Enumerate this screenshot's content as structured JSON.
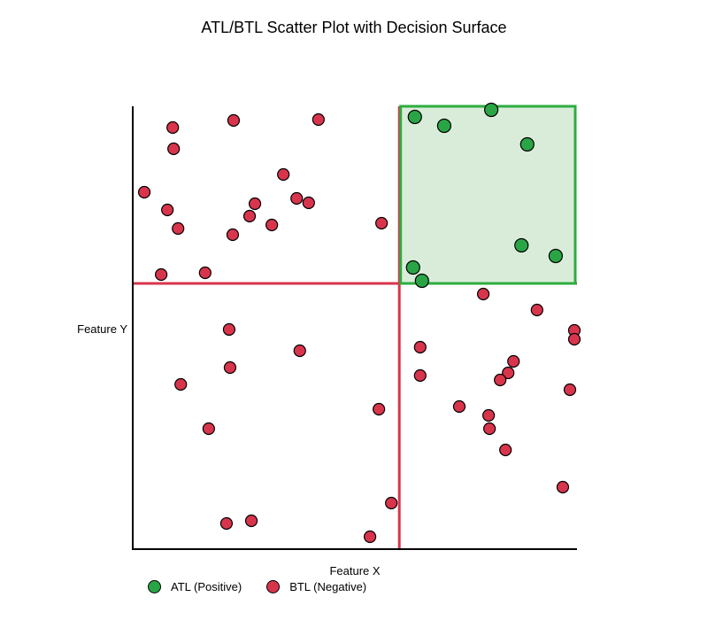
{
  "chart_data": {
    "type": "scatter",
    "title": "ATL/BTL Scatter Plot with Decision Surface",
    "xlabel": "Feature X",
    "ylabel": "Feature Y",
    "xlim": [
      0,
      1
    ],
    "ylim": [
      0,
      1
    ],
    "grid": false,
    "ticks": "none",
    "legend_position": "bottom-left",
    "axis_color": "#000000",
    "decision_boundary": {
      "x_threshold": 0.6,
      "y_threshold": 0.6,
      "color": "#d8354d",
      "line_width": 3
    },
    "positive_region": {
      "x": [
        0.6,
        0.996
      ],
      "y": [
        0.6,
        1.0
      ],
      "fill": "#d9ecd9",
      "stroke": "#2ead40"
    },
    "series": [
      {
        "name": "ATL (Positive)",
        "color": "#2aa546",
        "points": [
          [
            0.635,
            0.976
          ],
          [
            0.701,
            0.956
          ],
          [
            0.807,
            0.992
          ],
          [
            0.888,
            0.914
          ],
          [
            0.875,
            0.686
          ],
          [
            0.952,
            0.662
          ],
          [
            0.631,
            0.636
          ],
          [
            0.651,
            0.606
          ]
        ]
      },
      {
        "name": "BTL (Negative)",
        "color": "#d8354d",
        "points": [
          [
            0.09,
            0.952
          ],
          [
            0.092,
            0.904
          ],
          [
            0.227,
            0.968
          ],
          [
            0.418,
            0.97
          ],
          [
            0.026,
            0.806
          ],
          [
            0.078,
            0.766
          ],
          [
            0.102,
            0.724
          ],
          [
            0.225,
            0.71
          ],
          [
            0.275,
            0.78
          ],
          [
            0.263,
            0.752
          ],
          [
            0.313,
            0.732
          ],
          [
            0.339,
            0.846
          ],
          [
            0.369,
            0.792
          ],
          [
            0.396,
            0.782
          ],
          [
            0.56,
            0.736
          ],
          [
            0.064,
            0.62
          ],
          [
            0.163,
            0.624
          ],
          [
            0.217,
            0.496
          ],
          [
            0.219,
            0.41
          ],
          [
            0.108,
            0.372
          ],
          [
            0.376,
            0.448
          ],
          [
            0.171,
            0.272
          ],
          [
            0.554,
            0.316
          ],
          [
            0.211,
            0.058
          ],
          [
            0.267,
            0.064
          ],
          [
            0.534,
            0.028
          ],
          [
            0.582,
            0.104
          ],
          [
            0.789,
            0.576
          ],
          [
            0.91,
            0.54
          ],
          [
            0.994,
            0.494
          ],
          [
            0.994,
            0.474
          ],
          [
            0.647,
            0.456
          ],
          [
            0.647,
            0.392
          ],
          [
            0.857,
            0.424
          ],
          [
            0.845,
            0.398
          ],
          [
            0.827,
            0.382
          ],
          [
            0.984,
            0.36
          ],
          [
            0.735,
            0.322
          ],
          [
            0.801,
            0.302
          ],
          [
            0.803,
            0.272
          ],
          [
            0.839,
            0.224
          ],
          [
            0.968,
            0.14
          ]
        ]
      }
    ]
  },
  "legend": {
    "atl_label": "ATL (Positive)",
    "btl_label": "BTL (Negative)"
  }
}
